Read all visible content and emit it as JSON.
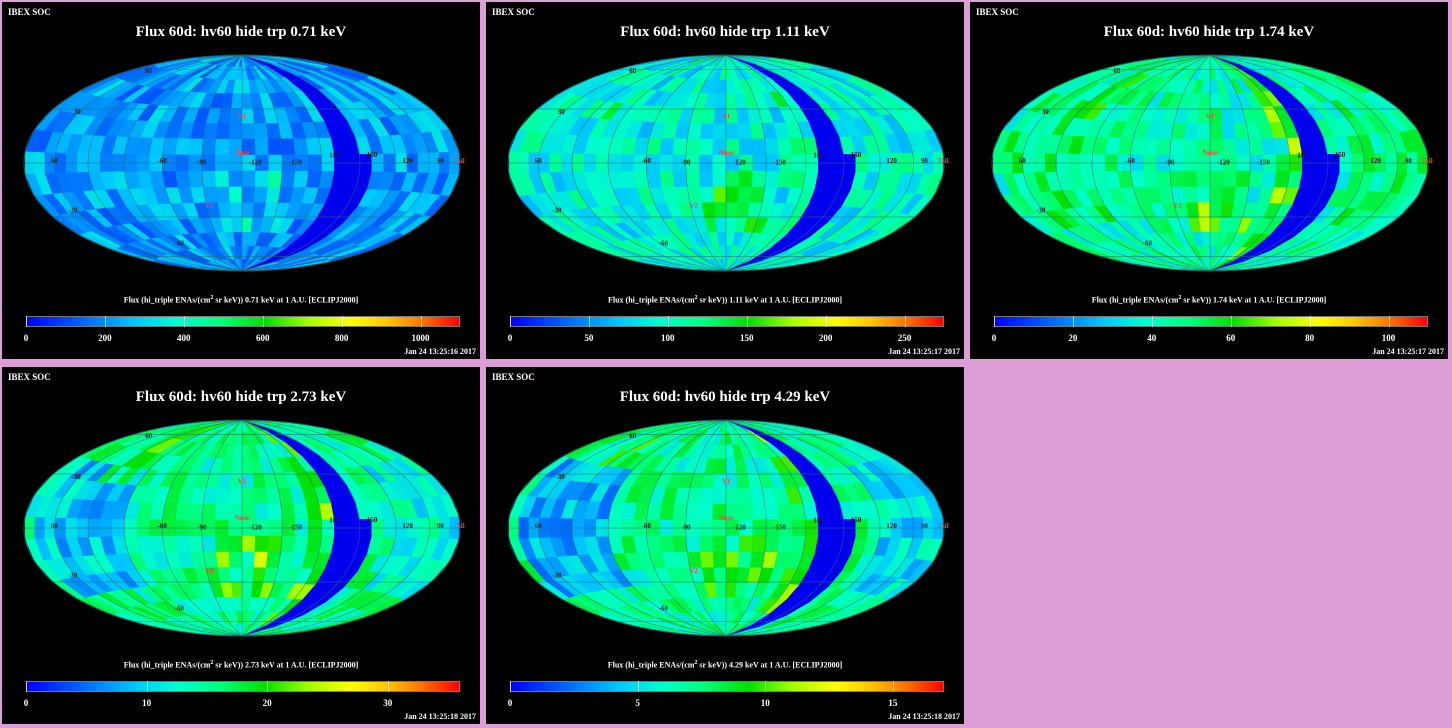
{
  "chart_data": [
    {
      "type": "heatmap",
      "header": "IBEX SOC",
      "title": "Flux 60d: hv60 hide trp 0.71 keV",
      "colorbar_label": "Flux (hi_triple ENAs/(cm",
      "colorbar_label_sup": "2",
      "colorbar_label_end": " sr keV)) 0.71 keV at 1 A.U. [ECLIPJ2000]",
      "colorbar_range": [
        0,
        1100
      ],
      "colorbar_ticks": [
        "0",
        "200",
        "400",
        "600",
        "800",
        "1000"
      ],
      "colorbar_tick_values": [
        0,
        200,
        400,
        600,
        800,
        1000
      ],
      "timestamp": "Jan 24 13:25:16 2017",
      "base_level": 0.22,
      "left_lobe": 0.0,
      "right_lobe": 0.0,
      "hotspot": 0.12,
      "ribbon": 0.0,
      "map_labels": [
        {
          "text": "60",
          "lon": 150,
          "lat": 62
        },
        {
          "text": "30",
          "lon": 150,
          "lat": 30
        },
        {
          "text": "60",
          "lon": 150,
          "lat": 0
        },
        {
          "text": "V1",
          "lon": 0,
          "lat": 34
        },
        {
          "text": "-60",
          "lon": 60,
          "lat": 0
        },
        {
          "text": "-90",
          "lon": 30,
          "lat": -1
        },
        {
          "text": "Nose",
          "lon": 0,
          "lat": 6
        },
        {
          "text": "-120",
          "lon": -10,
          "lat": -1
        },
        {
          "text": "-150",
          "lon": -40,
          "lat": -1
        },
        {
          "text": "180",
          "lon": -70,
          "lat": 4
        },
        {
          "text": "150",
          "lon": -100,
          "lat": 4
        },
        {
          "text": "120",
          "lon": -130,
          "lat": 0
        },
        {
          "text": "90",
          "lon": -160,
          "lat": 0
        },
        {
          "text": "Tail",
          "lon": -179,
          "lat": 0
        },
        {
          "text": "V2",
          "lon": 28,
          "lat": -34
        },
        {
          "text": "-60",
          "lon": 90,
          "lat": -62
        },
        {
          "text": "-30",
          "lon": 155,
          "lat": -30
        }
      ]
    },
    {
      "type": "heatmap",
      "header": "IBEX SOC",
      "title": "Flux 60d: hv60 hide trp 1.11 keV",
      "colorbar_label": "Flux (hi_triple ENAs/(cm",
      "colorbar_label_sup": "2",
      "colorbar_label_end": " sr keV)) 1.11 keV at 1 A.U. [ECLIPJ2000]",
      "colorbar_range": [
        0,
        275
      ],
      "colorbar_ticks": [
        "0",
        "50",
        "100",
        "150",
        "200",
        "250"
      ],
      "colorbar_tick_values": [
        0,
        50,
        100,
        150,
        200,
        250
      ],
      "timestamp": "Jan 24 13:25:17 2017",
      "base_level": 0.36,
      "left_lobe": 0.0,
      "right_lobe": 0.0,
      "hotspot": 0.18,
      "ribbon": 0.1,
      "map_labels": [
        {
          "text": "60",
          "lon": 150,
          "lat": 62
        },
        {
          "text": "30",
          "lon": 150,
          "lat": 30
        },
        {
          "text": "60",
          "lon": 150,
          "lat": 0
        },
        {
          "text": "V1",
          "lon": 0,
          "lat": 34
        },
        {
          "text": "-60",
          "lon": 60,
          "lat": 0
        },
        {
          "text": "-90",
          "lon": 30,
          "lat": -1
        },
        {
          "text": "Nose",
          "lon": 0,
          "lat": 6
        },
        {
          "text": "-120",
          "lon": -10,
          "lat": -1
        },
        {
          "text": "-150",
          "lon": -40,
          "lat": -1
        },
        {
          "text": "180",
          "lon": -70,
          "lat": 4
        },
        {
          "text": "150",
          "lon": -100,
          "lat": 4
        },
        {
          "text": "120",
          "lon": -130,
          "lat": 0
        },
        {
          "text": "90",
          "lon": -160,
          "lat": 0
        },
        {
          "text": "Tail",
          "lon": -179,
          "lat": 0
        },
        {
          "text": "V2",
          "lon": 28,
          "lat": -34
        },
        {
          "text": "-60",
          "lon": 90,
          "lat": -62
        },
        {
          "text": "-30",
          "lon": 155,
          "lat": -30
        }
      ]
    },
    {
      "type": "heatmap",
      "header": "IBEX SOC",
      "title": "Flux 60d: hv60 hide trp 1.74 keV",
      "colorbar_label": "Flux (hi_triple ENAs/(cm",
      "colorbar_label_sup": "2",
      "colorbar_label_end": " sr keV)) 1.74 keV at 1 A.U. [ECLIPJ2000]",
      "colorbar_range": [
        0,
        110
      ],
      "colorbar_ticks": [
        "0",
        "20",
        "40",
        "60",
        "80",
        "100"
      ],
      "colorbar_tick_values": [
        0,
        20,
        40,
        60,
        80,
        100
      ],
      "timestamp": "Jan 24 13:25:17 2017",
      "base_level": 0.42,
      "left_lobe": 0.06,
      "right_lobe": 0.04,
      "hotspot": 0.22,
      "ribbon": 0.22,
      "map_labels": [
        {
          "text": "60",
          "lon": 150,
          "lat": 62
        },
        {
          "text": "30",
          "lon": 150,
          "lat": 30
        },
        {
          "text": "60",
          "lon": 150,
          "lat": 0
        },
        {
          "text": "V1",
          "lon": 0,
          "lat": 34
        },
        {
          "text": "-60",
          "lon": 60,
          "lat": 0
        },
        {
          "text": "-90",
          "lon": 30,
          "lat": -1
        },
        {
          "text": "Nose",
          "lon": 0,
          "lat": 6
        },
        {
          "text": "-120",
          "lon": -10,
          "lat": -1
        },
        {
          "text": "-150",
          "lon": -40,
          "lat": -1
        },
        {
          "text": "180",
          "lon": -70,
          "lat": 4
        },
        {
          "text": "150",
          "lon": -100,
          "lat": 4
        },
        {
          "text": "120",
          "lon": -130,
          "lat": 0
        },
        {
          "text": "90",
          "lon": -160,
          "lat": 0
        },
        {
          "text": "Tail",
          "lon": -179,
          "lat": 0
        },
        {
          "text": "V2",
          "lon": 28,
          "lat": -34
        },
        {
          "text": "-60",
          "lon": 90,
          "lat": -62
        },
        {
          "text": "-30",
          "lon": 155,
          "lat": -30
        }
      ]
    },
    {
      "type": "heatmap",
      "header": "IBEX SOC",
      "title": "Flux 60d: hv60 hide trp 2.73 keV",
      "colorbar_label": "Flux (hi_triple ENAs/(cm",
      "colorbar_label_sup": "2",
      "colorbar_label_end": " sr keV)) 2.73 keV at 1 A.U. [ECLIPJ2000]",
      "colorbar_range": [
        0,
        36
      ],
      "colorbar_ticks": [
        "0",
        "10",
        "20",
        "30"
      ],
      "colorbar_tick_values": [
        0,
        10,
        20,
        30
      ],
      "timestamp": "Jan 24 13:25:18 2017",
      "base_level": 0.44,
      "left_lobe": -0.16,
      "right_lobe": -0.08,
      "hotspot": 0.24,
      "ribbon": 0.28,
      "map_labels": [
        {
          "text": "60",
          "lon": 150,
          "lat": 62
        },
        {
          "text": "30",
          "lon": 150,
          "lat": 30
        },
        {
          "text": "60",
          "lon": 150,
          "lat": 0
        },
        {
          "text": "V1",
          "lon": 0,
          "lat": 34
        },
        {
          "text": "-60",
          "lon": 60,
          "lat": 0
        },
        {
          "text": "-90",
          "lon": 30,
          "lat": -1
        },
        {
          "text": "Nose",
          "lon": 0,
          "lat": 6
        },
        {
          "text": "-120",
          "lon": -10,
          "lat": -1
        },
        {
          "text": "-150",
          "lon": -40,
          "lat": -1
        },
        {
          "text": "180",
          "lon": -70,
          "lat": 4
        },
        {
          "text": "150",
          "lon": -100,
          "lat": 4
        },
        {
          "text": "120",
          "lon": -130,
          "lat": 0
        },
        {
          "text": "90",
          "lon": -160,
          "lat": 0
        },
        {
          "text": "Tail",
          "lon": -179,
          "lat": 0
        },
        {
          "text": "V2",
          "lon": 28,
          "lat": -34
        },
        {
          "text": "-60",
          "lon": 90,
          "lat": -62
        },
        {
          "text": "-30",
          "lon": 155,
          "lat": -30
        }
      ]
    },
    {
      "type": "heatmap",
      "header": "IBEX SOC",
      "title": "Flux 60d: hv60 hide trp 4.29 keV",
      "colorbar_label": "Flux (hi_triple ENAs/(cm",
      "colorbar_label_sup": "2",
      "colorbar_label_end": " sr keV)) 4.29 keV at 1 A.U. [ECLIPJ2000]",
      "colorbar_range": [
        0,
        17
      ],
      "colorbar_ticks": [
        "0",
        "5",
        "10",
        "15"
      ],
      "colorbar_tick_values": [
        0,
        5,
        10,
        15
      ],
      "timestamp": "Jan 24 13:25:18 2017",
      "base_level": 0.44,
      "left_lobe": -0.2,
      "right_lobe": -0.12,
      "hotspot": 0.2,
      "ribbon": 0.18,
      "map_labels": [
        {
          "text": "60",
          "lon": 150,
          "lat": 62
        },
        {
          "text": "30",
          "lon": 150,
          "lat": 30
        },
        {
          "text": "60",
          "lon": 150,
          "lat": 0
        },
        {
          "text": "V1",
          "lon": 0,
          "lat": 34
        },
        {
          "text": "-60",
          "lon": 60,
          "lat": 0
        },
        {
          "text": "-90",
          "lon": 30,
          "lat": -1
        },
        {
          "text": "Nose",
          "lon": 0,
          "lat": 6
        },
        {
          "text": "-120",
          "lon": -10,
          "lat": -1
        },
        {
          "text": "-150",
          "lon": -40,
          "lat": -1
        },
        {
          "text": "180",
          "lon": -70,
          "lat": 4
        },
        {
          "text": "150",
          "lon": -100,
          "lat": 4
        },
        {
          "text": "120",
          "lon": -130,
          "lat": 0
        },
        {
          "text": "90",
          "lon": -160,
          "lat": 0
        },
        {
          "text": "Tail",
          "lon": -179,
          "lat": 0
        },
        {
          "text": "V2",
          "lon": 28,
          "lat": -34
        },
        {
          "text": "-60",
          "lon": 90,
          "lat": -62
        },
        {
          "text": "-30",
          "lon": 155,
          "lat": -30
        }
      ]
    }
  ],
  "colors": {
    "page_background": "#dd9ed8",
    "panel_background": "#000000",
    "label_color": "#ff4040",
    "grid_color": "#2a6b6b"
  }
}
